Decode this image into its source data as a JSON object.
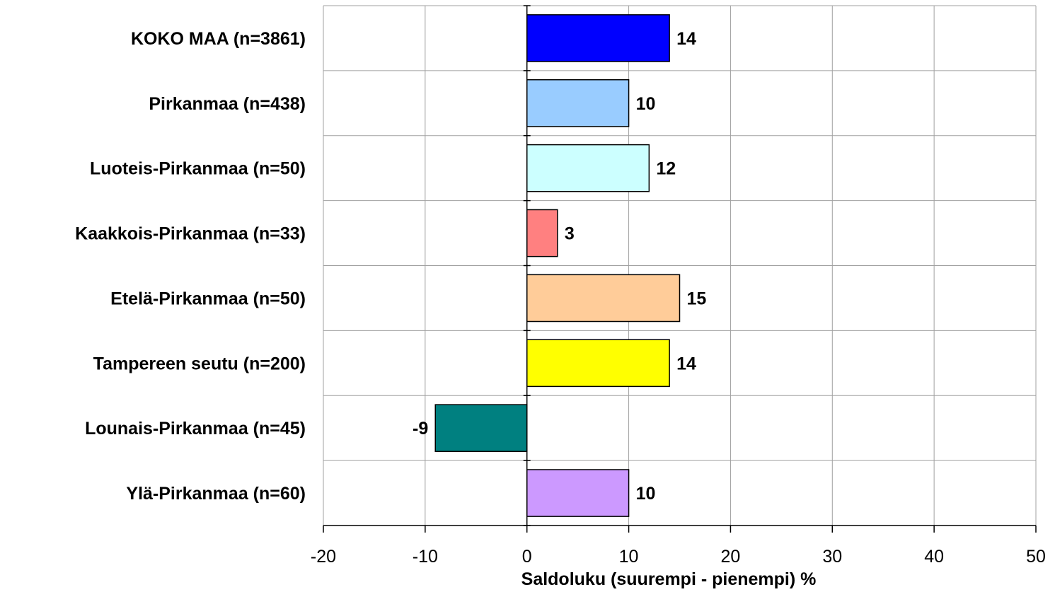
{
  "chart_data": {
    "type": "bar",
    "orientation": "horizontal",
    "title": "",
    "xlabel": "Saldoluku (suurempi - pienempi) %",
    "ylabel": "",
    "xlim": [
      -20,
      50
    ],
    "xticks": [
      -20,
      -10,
      0,
      10,
      20,
      30,
      40,
      50
    ],
    "grid": true,
    "legend": "none",
    "categories": [
      "KOKO MAA (n=3861)",
      "Pirkanmaa (n=438)",
      "Luoteis-Pirkanmaa (n=50)",
      "Kaakkois-Pirkanmaa (n=33)",
      "Etelä-Pirkanmaa (n=50)",
      "Tampereen seutu (n=200)",
      "Lounais-Pirkanmaa (n=45)",
      "Ylä-Pirkanmaa (n=60)"
    ],
    "values": [
      14,
      10,
      12,
      3,
      15,
      14,
      -9,
      10
    ],
    "bar_colors": [
      "#0000ff",
      "#99ccff",
      "#ccffff",
      "#ff8080",
      "#ffcc99",
      "#ffff00",
      "#008080",
      "#cc99ff"
    ]
  }
}
